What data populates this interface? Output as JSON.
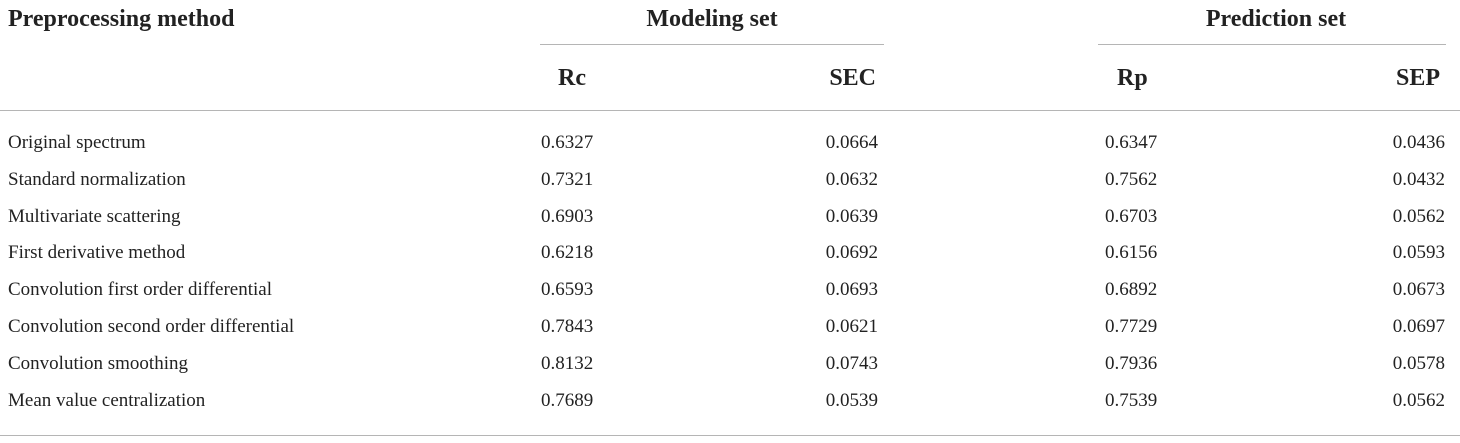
{
  "table": {
    "header": {
      "method": "Preprocessing method",
      "groups": [
        "Modeling set",
        "Prediction set"
      ],
      "columns": [
        "Rc",
        "SEC",
        "Rp",
        "SEP"
      ]
    },
    "rows": [
      [
        "Original spectrum",
        "0.6327",
        "0.0664",
        "0.6347",
        "0.0436"
      ],
      [
        "Standard normalization",
        "0.7321",
        "0.0632",
        "0.7562",
        "0.0432"
      ],
      [
        "Multivariate scattering",
        "0.6903",
        "0.0639",
        "0.6703",
        "0.0562"
      ],
      [
        "First derivative method",
        "0.6218",
        "0.0692",
        "0.6156",
        "0.0593"
      ],
      [
        "Convolution first order differential",
        "0.6593",
        "0.0693",
        "0.6892",
        "0.0673"
      ],
      [
        "Convolution second order differential",
        "0.7843",
        "0.0621",
        "0.7729",
        "0.0697"
      ],
      [
        "Convolution smoothing",
        "0.8132",
        "0.0743",
        "0.7936",
        "0.0578"
      ],
      [
        "Mean value centralization",
        "0.7689",
        "0.0539",
        "0.7539",
        "0.0562"
      ]
    ]
  }
}
